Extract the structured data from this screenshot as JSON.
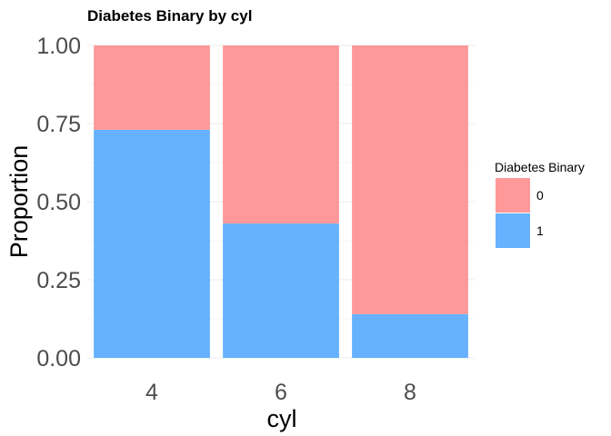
{
  "chart_data": {
    "type": "bar",
    "stacked": true,
    "title": "Diabetes Binary by cyl",
    "xlabel": "cyl",
    "ylabel": "Proportion",
    "categories": [
      "4",
      "6",
      "8"
    ],
    "series": [
      {
        "name": "0",
        "values": [
          0.27,
          0.57,
          0.86
        ],
        "color": "#ff9999"
      },
      {
        "name": "1",
        "values": [
          0.73,
          0.43,
          0.14
        ],
        "color": "#66b2ff"
      }
    ],
    "ylim": [
      0,
      1
    ],
    "yticks": [
      "0.00",
      "0.25",
      "0.50",
      "0.75",
      "1.00"
    ],
    "grid": true,
    "legend": {
      "title": "Diabetes Binary",
      "position": "right"
    }
  }
}
